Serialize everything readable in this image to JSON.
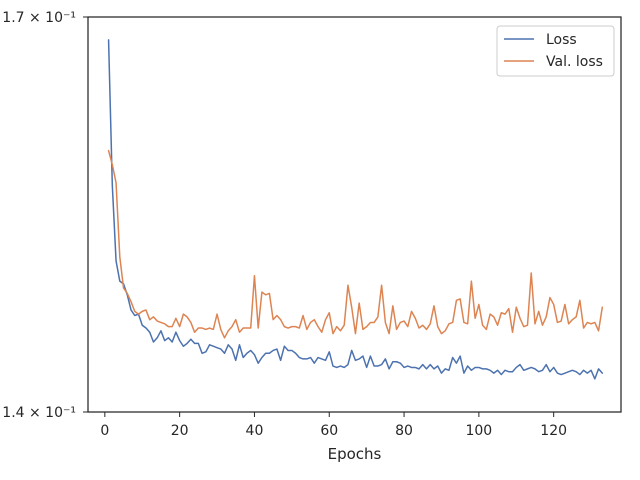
{
  "chart_data": {
    "type": "line",
    "title": "",
    "xlabel": "Epochs",
    "ylabel": "",
    "xlim": [
      -4.5,
      138
    ],
    "ylim": [
      0.14,
      0.17
    ],
    "yscale": "log",
    "grid": false,
    "legend_position": "top-right",
    "x_ticks": [
      0,
      20,
      40,
      60,
      80,
      100,
      120
    ],
    "y_tick_labels": [
      "1.7 × 10⁻¹",
      "1.4 × 10⁻¹"
    ],
    "y_tick_values": [
      0.17,
      0.14
    ],
    "x": [
      1,
      2,
      3,
      4,
      5,
      6,
      7,
      8,
      9,
      10,
      11,
      12,
      13,
      14,
      15,
      16,
      17,
      18,
      19,
      20,
      21,
      22,
      23,
      24,
      25,
      26,
      27,
      28,
      29,
      30,
      31,
      32,
      33,
      34,
      35,
      36,
      37,
      38,
      39,
      40,
      41,
      42,
      43,
      44,
      45,
      46,
      47,
      48,
      49,
      50,
      51,
      52,
      53,
      54,
      55,
      56,
      57,
      58,
      59,
      60,
      61,
      62,
      63,
      64,
      65,
      66,
      67,
      68,
      69,
      70,
      71,
      72,
      73,
      74,
      75,
      76,
      77,
      78,
      79,
      80,
      81,
      82,
      83,
      84,
      85,
      86,
      87,
      88,
      89,
      90,
      91,
      92,
      93,
      94,
      95,
      96,
      97,
      98,
      99,
      100,
      101,
      102,
      103,
      104,
      105,
      106,
      107,
      108,
      109,
      110,
      111,
      112,
      113,
      114,
      115,
      116,
      117,
      118,
      119,
      120,
      121,
      122,
      123,
      124,
      125,
      126,
      127,
      128,
      129,
      130,
      131,
      132,
      133
    ],
    "series": [
      {
        "name": "Loss",
        "color": "#4c72b0",
        "values": [
          0.1681,
          0.1565,
          0.1508,
          0.1493,
          0.1491,
          0.1483,
          0.1472,
          0.1468,
          0.1469,
          0.1461,
          0.1459,
          0.1456,
          0.1449,
          0.1452,
          0.1457,
          0.145,
          0.1452,
          0.1449,
          0.1456,
          0.145,
          0.1446,
          0.1448,
          0.1451,
          0.1448,
          0.1448,
          0.1441,
          0.1442,
          0.1447,
          0.1446,
          0.1445,
          0.1444,
          0.1441,
          0.1447,
          0.1444,
          0.1436,
          0.1447,
          0.1438,
          0.1441,
          0.1443,
          0.144,
          0.1434,
          0.1438,
          0.1441,
          0.1441,
          0.1443,
          0.1444,
          0.1436,
          0.1446,
          0.1443,
          0.1443,
          0.1441,
          0.1438,
          0.1437,
          0.1437,
          0.1438,
          0.1434,
          0.1438,
          0.1437,
          0.1436,
          0.1442,
          0.1432,
          0.1431,
          0.1432,
          0.1431,
          0.1433,
          0.1443,
          0.1436,
          0.1437,
          0.1439,
          0.1431,
          0.1439,
          0.1432,
          0.1432,
          0.1433,
          0.1437,
          0.143,
          0.1435,
          0.1435,
          0.1434,
          0.1431,
          0.1432,
          0.1431,
          0.1431,
          0.143,
          0.1433,
          0.143,
          0.1433,
          0.143,
          0.1432,
          0.1427,
          0.143,
          0.1429,
          0.1438,
          0.1434,
          0.1439,
          0.1427,
          0.1432,
          0.1429,
          0.1431,
          0.1431,
          0.143,
          0.143,
          0.1429,
          0.1427,
          0.1429,
          0.1426,
          0.1429,
          0.1428,
          0.1428,
          0.1431,
          0.1433,
          0.1429,
          0.143,
          0.1431,
          0.143,
          0.1428,
          0.1429,
          0.1433,
          0.1428,
          0.1431,
          0.1427,
          0.1426,
          0.1427,
          0.1428,
          0.1429,
          0.1428,
          0.1426,
          0.1429,
          0.1427,
          0.1429,
          0.1423,
          0.143,
          0.1427
        ]
      },
      {
        "name": "Val. loss",
        "color": "#dd8452",
        "values": [
          0.1592,
          0.1581,
          0.1567,
          0.1511,
          0.1488,
          0.1484,
          0.1478,
          0.1471,
          0.1469,
          0.1471,
          0.1472,
          0.1465,
          0.1467,
          0.1464,
          0.1463,
          0.1462,
          0.146,
          0.146,
          0.1466,
          0.146,
          0.1469,
          0.1467,
          0.1463,
          0.1456,
          0.1459,
          0.1459,
          0.1458,
          0.1459,
          0.1458,
          0.1469,
          0.1458,
          0.1452,
          0.1457,
          0.146,
          0.1465,
          0.1456,
          0.1459,
          0.1459,
          0.1459,
          0.1497,
          0.1459,
          0.1485,
          0.1483,
          0.1484,
          0.1465,
          0.1468,
          0.1465,
          0.146,
          0.1459,
          0.146,
          0.146,
          0.1459,
          0.1468,
          0.1458,
          0.1463,
          0.1465,
          0.146,
          0.1456,
          0.1465,
          0.147,
          0.1455,
          0.146,
          0.1457,
          0.1461,
          0.149,
          0.1474,
          0.1455,
          0.1477,
          0.1458,
          0.146,
          0.1463,
          0.1463,
          0.1467,
          0.149,
          0.1463,
          0.1455,
          0.1475,
          0.1458,
          0.1463,
          0.1464,
          0.146,
          0.1471,
          0.1466,
          0.1459,
          0.1461,
          0.1458,
          0.1462,
          0.1475,
          0.146,
          0.1455,
          0.1457,
          0.1462,
          0.1463,
          0.1479,
          0.148,
          0.1463,
          0.1462,
          0.1493,
          0.1466,
          0.1476,
          0.1461,
          0.1458,
          0.1469,
          0.1467,
          0.1461,
          0.147,
          0.1469,
          0.1473,
          0.1456,
          0.1474,
          0.1466,
          0.146,
          0.1461,
          0.1499,
          0.1462,
          0.1471,
          0.1461,
          0.1467,
          0.1481,
          0.1476,
          0.1463,
          0.1464,
          0.1476,
          0.1462,
          0.1465,
          0.1467,
          0.1479,
          0.1459,
          0.1463,
          0.1462,
          0.1463,
          0.1457,
          0.1474
        ]
      }
    ]
  }
}
